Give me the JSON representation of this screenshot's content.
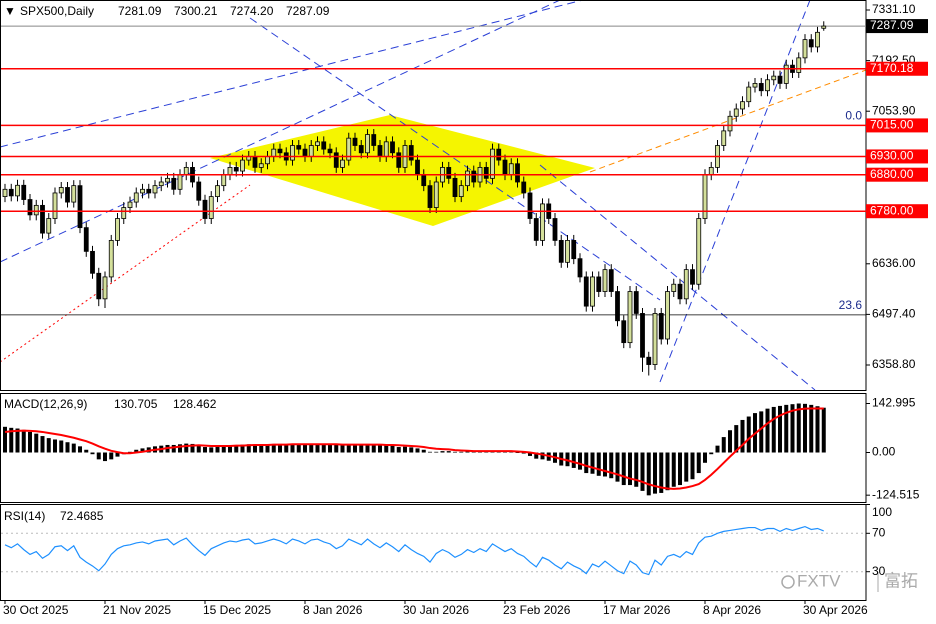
{
  "chart_data": {
    "type": "candlestick",
    "symbol": "SPX500,Daily",
    "last_bar_labels": {
      "open": "7281.09",
      "high": "7300.21",
      "low": "7274.20",
      "close": "7287.09"
    },
    "categories": [
      "30 Oct 2025",
      null,
      null,
      null,
      null,
      null,
      null,
      null,
      null,
      null,
      null,
      null,
      null,
      null,
      null,
      null,
      "21 Nov 2025",
      null,
      null,
      null,
      null,
      null,
      null,
      null,
      null,
      null,
      null,
      null,
      null,
      null,
      null,
      null,
      "15 Dec 2025",
      null,
      null,
      null,
      null,
      null,
      null,
      null,
      null,
      null,
      null,
      null,
      null,
      null,
      null,
      null,
      "8 Jan 2026",
      null,
      null,
      null,
      null,
      null,
      null,
      null,
      null,
      null,
      null,
      null,
      null,
      null,
      null,
      null,
      "30 Jan 2026",
      null,
      null,
      null,
      null,
      null,
      null,
      null,
      null,
      null,
      null,
      null,
      null,
      null,
      null,
      null,
      "23 Feb 2026",
      null,
      null,
      null,
      null,
      null,
      null,
      null,
      null,
      null,
      null,
      null,
      null,
      null,
      null,
      null,
      "17 Mar 2026",
      null,
      null,
      null,
      null,
      null,
      null,
      null,
      null,
      null,
      null,
      null,
      null,
      null,
      null,
      null,
      "8 Apr 2026",
      null,
      null,
      null,
      null,
      null,
      null,
      null,
      null,
      null,
      null,
      null,
      null,
      null,
      null,
      null,
      "30 Apr 2026",
      null,
      null,
      null
    ],
    "open": [
      6820,
      6840,
      6822,
      6851,
      6812,
      6770,
      6796,
      6720,
      6760,
      6830,
      6845,
      6805,
      6850,
      6735,
      6670,
      6610,
      6540,
      6600,
      6700,
      6760,
      6790,
      6805,
      6830,
      6840,
      6830,
      6850,
      6860,
      6870,
      6840,
      6880,
      6900,
      6860,
      6810,
      6760,
      6820,
      6850,
      6880,
      6900,
      6890,
      6920,
      6930,
      6900,
      6910,
      6930,
      6950,
      6940,
      6920,
      6960,
      6950,
      6930,
      6960,
      6970,
      6950,
      6940,
      6900,
      6920,
      6980,
      6960,
      6940,
      6990,
      6960,
      6930,
      6970,
      6940,
      6900,
      6960,
      6920,
      6880,
      6850,
      6790,
      6860,
      6900,
      6870,
      6820,
      6850,
      6890,
      6860,
      6900,
      6870,
      6950,
      6920,
      6880,
      6910,
      6860,
      6830,
      6760,
      6700,
      6800,
      6760,
      6700,
      6640,
      6700,
      6650,
      6600,
      6520,
      6600,
      6560,
      6620,
      6560,
      6480,
      6420,
      6560,
      6500,
      6380,
      6360,
      6500,
      6430,
      6560,
      6580,
      6540,
      6620,
      6580,
      6760,
      6880,
      6900,
      6960,
      7000,
      7040,
      7060,
      7080,
      7120,
      7130,
      7110,
      7140,
      7150,
      7130,
      7180,
      7160,
      7200,
      7250,
      7230,
      7281.09
    ],
    "high": [
      6855,
      6855,
      6866,
      6866,
      6827,
      6811,
      6811,
      6775,
      6845,
      6860,
      6860,
      6865,
      6865,
      6750,
      6685,
      6625,
      6615,
      6715,
      6775,
      6805,
      6820,
      6845,
      6855,
      6855,
      6865,
      6875,
      6885,
      6885,
      6895,
      6915,
      6915,
      6875,
      6825,
      6835,
      6865,
      6895,
      6915,
      6915,
      6935,
      6945,
      6945,
      6925,
      6945,
      6965,
      6965,
      6955,
      6975,
      6975,
      6965,
      6975,
      6985,
      6985,
      6965,
      6955,
      6935,
      6995,
      6995,
      6975,
      7005,
      7005,
      6975,
      6985,
      6985,
      6955,
      6975,
      6975,
      6935,
      6895,
      6865,
      6875,
      6915,
      6915,
      6885,
      6865,
      6905,
      6905,
      6915,
      6915,
      6965,
      6965,
      6935,
      6925,
      6925,
      6875,
      6845,
      6775,
      6815,
      6815,
      6775,
      6715,
      6715,
      6715,
      6665,
      6615,
      6615,
      6615,
      6635,
      6635,
      6575,
      6495,
      6575,
      6575,
      6515,
      6395,
      6515,
      6515,
      6575,
      6595,
      6595,
      6635,
      6635,
      6775,
      6895,
      6915,
      6975,
      7015,
      7055,
      7075,
      7095,
      7135,
      7145,
      7145,
      7155,
      7165,
      7165,
      7195,
      7195,
      7215,
      7265,
      7265,
      7285,
      7300.21
    ],
    "low": [
      6805,
      6807,
      6807,
      6797,
      6755,
      6755,
      6705,
      6705,
      6745,
      6815,
      6790,
      6790,
      6720,
      6655,
      6595,
      6520,
      6515,
      6585,
      6685,
      6745,
      6775,
      6790,
      6815,
      6815,
      6815,
      6835,
      6845,
      6825,
      6825,
      6865,
      6845,
      6795,
      6745,
      6745,
      6805,
      6835,
      6865,
      6875,
      6875,
      6905,
      6885,
      6885,
      6895,
      6915,
      6925,
      6905,
      6905,
      6935,
      6915,
      6915,
      6945,
      6935,
      6925,
      6885,
      6885,
      6905,
      6945,
      6925,
      6925,
      6945,
      6915,
      6915,
      6925,
      6885,
      6885,
      6905,
      6865,
      6835,
      6775,
      6775,
      6845,
      6855,
      6805,
      6805,
      6835,
      6845,
      6845,
      6855,
      6855,
      6905,
      6865,
      6865,
      6845,
      6815,
      6745,
      6685,
      6685,
      6745,
      6685,
      6625,
      6625,
      6635,
      6585,
      6505,
      6505,
      6545,
      6545,
      6545,
      6465,
      6405,
      6405,
      6485,
      6340,
      6330,
      6345,
      6415,
      6415,
      6545,
      6525,
      6525,
      6565,
      6565,
      6745,
      6865,
      6885,
      6945,
      6985,
      7025,
      7045,
      7065,
      7105,
      7095,
      7095,
      7125,
      7115,
      7115,
      7145,
      7145,
      7185,
      7215,
      7215,
      7274.2
    ],
    "close": [
      6840,
      6822,
      6851,
      6812,
      6770,
      6796,
      6720,
      6760,
      6830,
      6845,
      6805,
      6850,
      6735,
      6670,
      6610,
      6540,
      6600,
      6700,
      6760,
      6790,
      6805,
      6830,
      6840,
      6830,
      6850,
      6860,
      6870,
      6840,
      6880,
      6900,
      6860,
      6810,
      6760,
      6820,
      6850,
      6880,
      6900,
      6890,
      6920,
      6930,
      6900,
      6910,
      6930,
      6950,
      6940,
      6920,
      6960,
      6950,
      6930,
      6960,
      6970,
      6950,
      6940,
      6900,
      6920,
      6980,
      6960,
      6940,
      6990,
      6960,
      6930,
      6970,
      6940,
      6900,
      6960,
      6920,
      6880,
      6850,
      6790,
      6860,
      6900,
      6870,
      6820,
      6850,
      6890,
      6860,
      6900,
      6870,
      6950,
      6920,
      6880,
      6910,
      6860,
      6830,
      6760,
      6700,
      6800,
      6760,
      6700,
      6640,
      6700,
      6650,
      6600,
      6520,
      6600,
      6560,
      6620,
      6560,
      6480,
      6420,
      6560,
      6500,
      6380,
      6360,
      6500,
      6430,
      6560,
      6580,
      6540,
      6620,
      6580,
      6760,
      6880,
      6900,
      6960,
      7000,
      7040,
      7060,
      7080,
      7120,
      7130,
      7110,
      7140,
      7150,
      7130,
      7180,
      7160,
      7200,
      7250,
      7230,
      7270,
      7287.09
    ],
    "up_color": "#d4e09b",
    "down_color": "#000000",
    "ylim": [
      6290.3,
      7358.5
    ],
    "yticks": [
      {
        "value": 7331.1,
        "label": "7331.10"
      },
      {
        "value": 7192.5,
        "label": "7192.50"
      },
      {
        "value": 7053.9,
        "label": "7053.90"
      },
      {
        "value": 6636,
        "label": "6636.00"
      },
      {
        "value": 6497.4,
        "label": "6497.40"
      },
      {
        "value": 6358.8,
        "label": "6358.80"
      }
    ],
    "levels": [
      7170.18,
      {
        "value": 7015,
        "label": "7015.00"
      },
      {
        "value": 6930,
        "label": "6930.00"
      },
      {
        "value": 6880,
        "label": "6880.00"
      },
      {
        "value": 6780,
        "label": "6780.00"
      }
    ],
    "level_color": "#ff0000",
    "fib_levels": [
      {
        "level": {
          "value": 0,
          "label": "0.0"
        },
        "price": 7015
      },
      {
        "level": 23.6,
        "price": 6496
      }
    ],
    "macd": {
      "title": "MACD(12,26,9)",
      "hist": [
        75,
        72,
        70,
        66,
        60,
        55,
        48,
        42,
        38,
        35,
        30,
        26,
        18,
        8,
        -5,
        -20,
        -25,
        -20,
        -12,
        -5,
        2,
        8,
        12,
        15,
        18,
        20,
        22,
        22,
        24,
        26,
        25,
        22,
        16,
        15,
        16,
        18,
        20,
        21,
        23,
        24,
        23,
        23,
        24,
        25,
        25,
        24,
        25,
        25,
        24,
        25,
        26,
        25,
        24,
        22,
        22,
        24,
        24,
        23,
        25,
        24,
        22,
        22,
        20,
        16,
        17,
        15,
        12,
        8,
        2,
        2,
        4,
        4,
        2,
        2,
        3,
        2,
        3,
        2,
        5,
        5,
        3,
        3,
        0,
        -3,
        -10,
        -18,
        -20,
        -24,
        -30,
        -38,
        -40,
        -45,
        -50,
        -60,
        -62,
        -68,
        -70,
        -75,
        -85,
        -95,
        -95,
        -100,
        -112,
        -125,
        -120,
        -118,
        -110,
        -100,
        -95,
        -85,
        -78,
        -60,
        -30,
        -5,
        20,
        45,
        65,
        80,
        95,
        105,
        115,
        120,
        128,
        133,
        136,
        139,
        141,
        142.995,
        142,
        139,
        135,
        130.705
      ],
      "signal": [
        60,
        62,
        63,
        64,
        63,
        62,
        60,
        57,
        54,
        51,
        47,
        43,
        38,
        33,
        26,
        18,
        11,
        5,
        1,
        -2,
        -2,
        0,
        2,
        5,
        8,
        10,
        13,
        15,
        17,
        19,
        20,
        21,
        20,
        19,
        19,
        19,
        19,
        20,
        20,
        21,
        22,
        22,
        22,
        23,
        23,
        23,
        24,
        24,
        24,
        24,
        24,
        24,
        24,
        24,
        23,
        23,
        23,
        23,
        23,
        23,
        23,
        22,
        22,
        21,
        20,
        19,
        18,
        16,
        13,
        11,
        10,
        9,
        7,
        6,
        5,
        4,
        4,
        4,
        4,
        4,
        4,
        4,
        3,
        2,
        0,
        -3,
        -6,
        -10,
        -14,
        -19,
        -23,
        -28,
        -33,
        -39,
        -44,
        -49,
        -54,
        -59,
        -64,
        -70,
        -76,
        -80,
        -86,
        -93,
        -98,
        -102,
        -105,
        -106,
        -105,
        -102,
        -98,
        -92,
        -80,
        -65,
        -48,
        -30,
        -12,
        5,
        22,
        40,
        55,
        70,
        85,
        98,
        108,
        116,
        122,
        126,
        128,
        128.5,
        128.6,
        128.462
      ],
      "hist_color": "#000000",
      "signal_color": "#ff0000",
      "ylim": [
        -145.9,
        172.2
      ],
      "yticks": [
        142.995,
        {
          "value": 0,
          "label": "0.00"
        },
        -124.515
      ]
    },
    "rsi": {
      "title": "RSI(14)",
      "values": [
        58,
        55,
        59,
        53,
        48,
        51,
        44,
        48,
        56,
        57,
        52,
        57,
        45,
        40,
        36,
        31,
        38,
        48,
        54,
        57,
        58,
        60,
        61,
        59,
        62,
        63,
        64,
        58,
        62,
        65,
        58,
        52,
        47,
        54,
        57,
        60,
        62,
        61,
        63,
        64,
        59,
        60,
        62,
        64,
        62,
        59,
        64,
        62,
        59,
        63,
        64,
        61,
        59,
        54,
        57,
        64,
        61,
        58,
        64,
        59,
        55,
        60,
        56,
        51,
        58,
        53,
        49,
        46,
        40,
        49,
        53,
        50,
        45,
        48,
        53,
        50,
        54,
        51,
        59,
        55,
        51,
        54,
        49,
        46,
        40,
        35,
        45,
        42,
        37,
        33,
        40,
        36,
        33,
        28,
        38,
        35,
        41,
        36,
        31,
        28,
        41,
        37,
        29,
        27,
        42,
        37,
        46,
        48,
        45,
        51,
        48,
        60,
        66,
        67,
        70,
        72,
        73,
        74,
        75,
        76,
        76,
        73,
        75,
        75,
        72,
        75,
        73,
        75,
        77,
        74,
        75,
        72.4685
      ],
      "color": "#1e90ff",
      "ylim": [
        0,
        100
      ],
      "yticks": [
        100,
        70,
        30
      ],
      "grid": true
    },
    "watermark": [
      "FXTV",
      "富拓"
    ]
  }
}
